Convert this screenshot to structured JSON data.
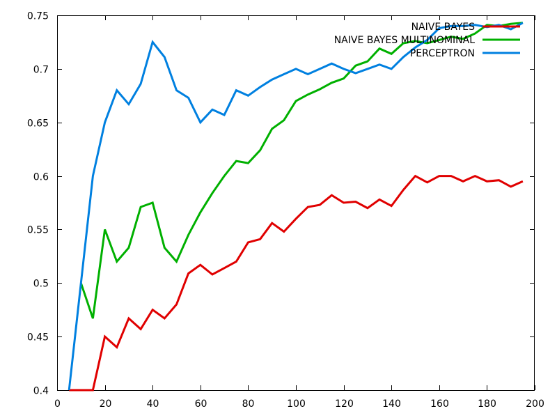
{
  "chart_data": {
    "type": "line",
    "title": "",
    "xlabel": "",
    "ylabel": "",
    "xlim": [
      0,
      200
    ],
    "ylim": [
      0.4,
      0.75
    ],
    "xticks": [
      "0",
      "20",
      "40",
      "60",
      "80",
      "100",
      "120",
      "140",
      "160",
      "180",
      "200"
    ],
    "yticks": [
      "0.4",
      "0.45",
      "0.5",
      "0.55",
      "0.6",
      "0.65",
      "0.7",
      "0.75"
    ],
    "grid": false,
    "legend_position": "top-right",
    "series": [
      {
        "name": "NAIVE BAYES",
        "color": "#e00000",
        "x": [
          5,
          10,
          15,
          20,
          25,
          30,
          35,
          40,
          45,
          50,
          55,
          60,
          65,
          70,
          75,
          80,
          85,
          90,
          95,
          100,
          105,
          110,
          115,
          120,
          125,
          130,
          135,
          140,
          145,
          150,
          155,
          160,
          165,
          170,
          175,
          180,
          185,
          190,
          195
        ],
        "y": [
          0.4,
          0.4,
          0.4,
          0.45,
          0.44,
          0.467,
          0.457,
          0.475,
          0.467,
          0.48,
          0.509,
          0.517,
          0.508,
          0.514,
          0.52,
          0.538,
          0.541,
          0.556,
          0.548,
          0.56,
          0.571,
          0.573,
          0.582,
          0.575,
          0.576,
          0.57,
          0.578,
          0.572,
          0.587,
          0.6,
          0.594,
          0.6,
          0.6,
          0.595,
          0.6,
          0.595,
          0.596,
          0.59,
          0.595
        ]
      },
      {
        "name": "NAIVE BAYES MULTINOMINAL",
        "color": "#00b000",
        "x": [
          10,
          15,
          20,
          25,
          30,
          35,
          40,
          45,
          50,
          55,
          60,
          65,
          70,
          75,
          80,
          85,
          90,
          95,
          100,
          105,
          110,
          115,
          120,
          125,
          130,
          135,
          140,
          145,
          150,
          155,
          160,
          165,
          170,
          175,
          180,
          185,
          190,
          195
        ],
        "y": [
          0.5,
          0.467,
          0.55,
          0.52,
          0.533,
          0.571,
          0.575,
          0.533,
          0.52,
          0.545,
          0.566,
          0.584,
          0.6,
          0.614,
          0.612,
          0.624,
          0.644,
          0.652,
          0.67,
          0.676,
          0.681,
          0.687,
          0.691,
          0.703,
          0.707,
          0.719,
          0.714,
          0.724,
          0.726,
          0.724,
          0.727,
          0.73,
          0.728,
          0.733,
          0.741,
          0.74,
          0.742,
          0.743
        ]
      },
      {
        "name": "PERCEPTRON",
        "color": "#0080e0",
        "x": [
          5,
          10,
          15,
          20,
          25,
          30,
          35,
          40,
          45,
          50,
          55,
          60,
          65,
          70,
          75,
          80,
          85,
          90,
          95,
          100,
          105,
          110,
          115,
          120,
          125,
          130,
          135,
          140,
          145,
          150,
          155,
          160,
          165,
          170,
          175,
          180,
          185,
          190,
          195
        ],
        "y": [
          0.4,
          0.5,
          0.6,
          0.65,
          0.68,
          0.667,
          0.686,
          0.725,
          0.711,
          0.68,
          0.673,
          0.65,
          0.662,
          0.657,
          0.68,
          0.675,
          0.683,
          0.69,
          0.695,
          0.7,
          0.695,
          0.7,
          0.705,
          0.7,
          0.696,
          0.7,
          0.704,
          0.7,
          0.711,
          0.72,
          0.727,
          0.738,
          0.74,
          0.74,
          0.741,
          0.739,
          0.741,
          0.737,
          0.743
        ]
      }
    ]
  }
}
